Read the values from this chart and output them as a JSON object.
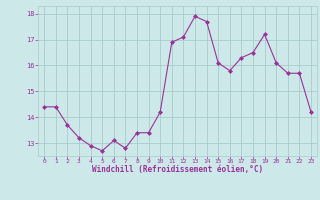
{
  "x": [
    0,
    1,
    2,
    3,
    4,
    5,
    6,
    7,
    8,
    9,
    10,
    11,
    12,
    13,
    14,
    15,
    16,
    17,
    18,
    19,
    20,
    21,
    22,
    23
  ],
  "y": [
    14.4,
    14.4,
    13.7,
    13.2,
    12.9,
    12.7,
    13.1,
    12.8,
    13.4,
    13.4,
    14.2,
    16.9,
    17.1,
    17.9,
    17.7,
    16.1,
    15.8,
    16.3,
    16.5,
    17.2,
    16.1,
    15.7,
    15.7,
    14.2
  ],
  "line_color": "#993399",
  "marker_color": "#993399",
  "bg_color": "#cce8e8",
  "grid_color": "#aacccc",
  "xlabel": "Windchill (Refroidissement éolien,°C)",
  "xlabel_color": "#993399",
  "tick_color": "#993399",
  "ylim": [
    12.5,
    18.3
  ],
  "xlim": [
    -0.5,
    23.5
  ],
  "yticks": [
    13,
    14,
    15,
    16,
    17,
    18
  ],
  "xticks": [
    0,
    1,
    2,
    3,
    4,
    5,
    6,
    7,
    8,
    9,
    10,
    11,
    12,
    13,
    14,
    15,
    16,
    17,
    18,
    19,
    20,
    21,
    22,
    23
  ]
}
